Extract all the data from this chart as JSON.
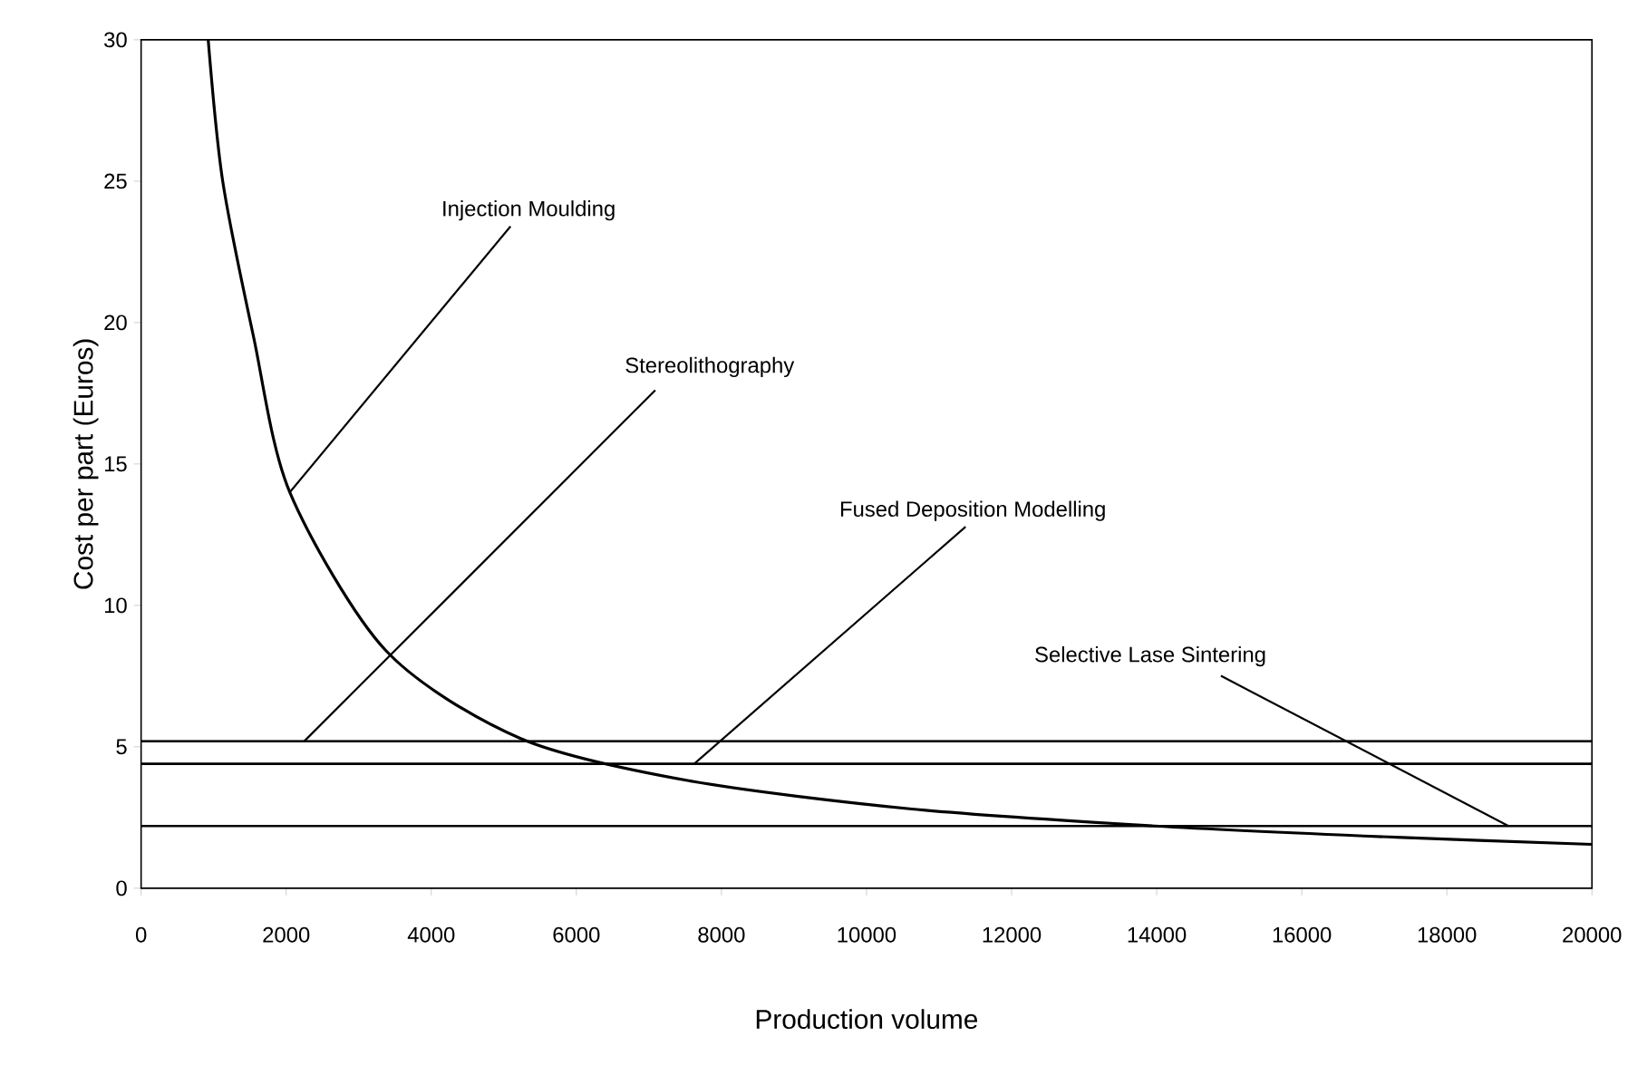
{
  "chart_data": {
    "type": "line",
    "xlabel": "Production volume",
    "ylabel": "Cost per part (Euros)",
    "xlim": [
      0,
      20000
    ],
    "ylim": [
      0,
      30
    ],
    "xticks": [
      0,
      2000,
      4000,
      6000,
      8000,
      10000,
      12000,
      14000,
      16000,
      18000,
      20000
    ],
    "yticks": [
      0,
      5,
      10,
      15,
      20,
      25,
      30
    ],
    "grid": false,
    "marker": "none",
    "line_style": "solid",
    "series": [
      {
        "color": "#000000",
        "x": [
          925,
          1125,
          1550,
          2050,
          3375,
          5225,
          7550,
          10625,
          13975,
          17300,
          20000
        ],
        "values": [
          30,
          25,
          19.5,
          14,
          8.4,
          5.3,
          3.8,
          2.8,
          2.2,
          1.8,
          1.55
        ]
      },
      {
        "color": "#000000",
        "x": [
          0,
          20000
        ],
        "values": [
          5.2,
          5.2
        ]
      },
      {
        "color": "#000000",
        "x": [
          0,
          20000
        ],
        "values": [
          4.4,
          4.4
        ]
      },
      {
        "color": "#000000",
        "x": [
          0,
          20000
        ],
        "values": [
          2.2,
          2.2
        ]
      }
    ],
    "annotations": [
      {
        "text": "Injection Moulding",
        "x": 2050,
        "y": 14
      },
      {
        "text": "Stereolithography",
        "x": 2250,
        "y": 5.2
      },
      {
        "text": "Fused Deposition Modelling",
        "x": 7625,
        "y": 4.4
      },
      {
        "text": "Selective Lase Sintering",
        "x": 18850,
        "y": 2.2
      }
    ]
  }
}
